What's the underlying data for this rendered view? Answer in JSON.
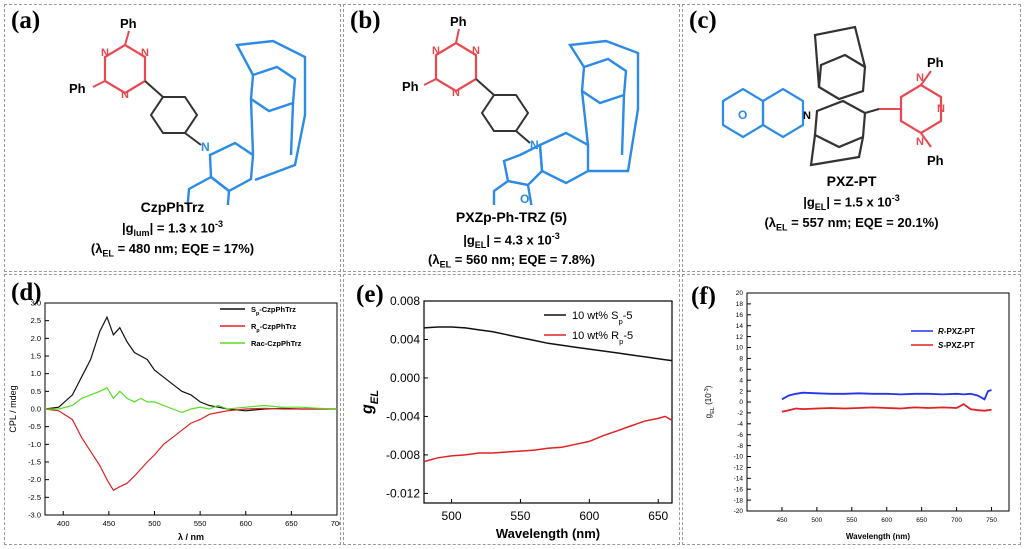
{
  "panels": {
    "a": {
      "label": "(a)",
      "name": "CzpPhTrz",
      "g_symbol": "g",
      "g_sub": "lum",
      "g_value": "= 1.3 x 10",
      "g_exp": "-3",
      "lambda_prefix": "(λ",
      "lambda_sub": "EL",
      "lambda_rest": "= 480 nm; EQE = 17%)"
    },
    "b": {
      "label": "(b)",
      "name": "PXZp-Ph-TRZ (5)",
      "g_symbol": "g",
      "g_sub": "EL",
      "g_value": "= 4.3 x 10",
      "g_exp": "-3",
      "lambda_prefix": "(λ",
      "lambda_sub": "EL",
      "lambda_rest": "= 560 nm; EQE = 7.8%)"
    },
    "c": {
      "label": "(c)",
      "name": "PXZ-PT",
      "g_symbol": "g",
      "g_sub": "EL",
      "g_value": "= 1.5 x 10",
      "g_exp": "-3",
      "lambda_prefix": "(λ",
      "lambda_sub": "EL",
      "lambda_rest": "= 557 nm; EQE = 20.1%)"
    },
    "d": {
      "label": "(d)"
    },
    "e": {
      "label": "(e)"
    },
    "f": {
      "label": "(f)"
    }
  },
  "molecule_labels": {
    "ph": "Ph",
    "n": "N",
    "o": "O"
  },
  "colors": {
    "triazine": "#e8484f",
    "paracyclophane": "#2b8be6",
    "black_series": "#111111",
    "red_series": "#e02222",
    "green_series": "#55dd22",
    "blue_series": "#2233ee"
  },
  "chart_data": [
    {
      "id": "d",
      "type": "line",
      "xlabel": "λ / nm",
      "ylabel": "CPL / mdeg",
      "xlim": [
        380,
        700
      ],
      "ylim": [
        -3.0,
        3.0
      ],
      "xticks": [
        400,
        450,
        500,
        550,
        600,
        650,
        700
      ],
      "yticks": [
        -3.0,
        -2.5,
        -2.0,
        -1.5,
        -1.0,
        -0.5,
        0.0,
        0.5,
        1.0,
        1.5,
        2.0,
        2.5,
        3.0
      ],
      "legend_position": "top-right",
      "x": [
        380,
        395,
        410,
        420,
        430,
        440,
        448,
        455,
        462,
        470,
        478,
        485,
        492,
        500,
        510,
        520,
        530,
        540,
        550,
        560,
        570,
        580,
        600,
        620,
        640,
        660,
        680,
        700
      ],
      "series": [
        {
          "name": "Sp-CzpPhTrz",
          "legend_main": "S",
          "legend_sub": "p",
          "legend_rest": "-CzpPhTrz",
          "color": "#111111",
          "values": [
            0.0,
            0.05,
            0.4,
            0.9,
            1.4,
            2.2,
            2.6,
            2.1,
            2.3,
            1.9,
            1.6,
            1.5,
            1.4,
            1.1,
            0.9,
            0.7,
            0.5,
            0.4,
            0.2,
            0.1,
            0.05,
            0.0,
            -0.05,
            0.0,
            0.02,
            0.0,
            0.0,
            0.0
          ]
        },
        {
          "name": "Rp-CzpPhTrz",
          "legend_main": "R",
          "legend_sub": "p",
          "legend_rest": "-CzpPhTrz",
          "color": "#e02222",
          "values": [
            0.0,
            -0.05,
            -0.3,
            -0.8,
            -1.2,
            -1.6,
            -2.0,
            -2.3,
            -2.2,
            -2.1,
            -1.9,
            -1.7,
            -1.5,
            -1.3,
            -1.0,
            -0.8,
            -0.6,
            -0.4,
            -0.3,
            -0.15,
            -0.1,
            -0.05,
            0.0,
            0.02,
            0.0,
            0.0,
            0.0,
            0.0
          ]
        },
        {
          "name": "Rac-CzpPhTrz",
          "legend_main": "Rac-CzpPhTrz",
          "legend_sub": "",
          "legend_rest": "",
          "color": "#55dd22",
          "values": [
            0.0,
            0.0,
            0.1,
            0.3,
            0.4,
            0.5,
            0.6,
            0.3,
            0.5,
            0.3,
            0.2,
            0.3,
            0.2,
            0.2,
            0.1,
            0.0,
            -0.1,
            0.0,
            0.05,
            0.0,
            0.1,
            0.0,
            0.05,
            0.1,
            0.05,
            0.05,
            0.02,
            0.0
          ]
        }
      ]
    },
    {
      "id": "e",
      "type": "line",
      "xlabel": "Wavelength (nm)",
      "ylabel_main": "g",
      "ylabel_sub": "EL",
      "xlim": [
        480,
        660
      ],
      "ylim": [
        -0.013,
        0.008
      ],
      "xticks": [
        500,
        550,
        600,
        650
      ],
      "yticks": [
        -0.012,
        -0.008,
        -0.004,
        0.0,
        0.004,
        0.008
      ],
      "ytick_labels": [
        "-0.012",
        "-0.008",
        "-0.004",
        "0.000",
        "0.004",
        "0.008"
      ],
      "legend_position": "top-right",
      "x": [
        480,
        490,
        500,
        510,
        520,
        530,
        540,
        550,
        560,
        570,
        580,
        590,
        600,
        610,
        620,
        630,
        640,
        650,
        655,
        660
      ],
      "series": [
        {
          "name": "10 wt% Sp-5",
          "legend_main": "10 wt% S",
          "legend_sub": "p",
          "legend_rest": "-5",
          "color": "#111111",
          "values": [
            0.0052,
            0.0053,
            0.0053,
            0.0052,
            0.005,
            0.0048,
            0.0045,
            0.0042,
            0.0039,
            0.0036,
            0.0034,
            0.0032,
            0.003,
            0.0028,
            0.0026,
            0.0024,
            0.0022,
            0.002,
            0.0019,
            0.0018
          ]
        },
        {
          "name": "10 wt% Rp-5",
          "legend_main": "10 wt% R",
          "legend_sub": "p",
          "legend_rest": "-5",
          "color": "#e02222",
          "values": [
            -0.0087,
            -0.0083,
            -0.0081,
            -0.008,
            -0.0078,
            -0.0078,
            -0.0077,
            -0.0076,
            -0.0075,
            -0.0073,
            -0.0072,
            -0.0069,
            -0.0066,
            -0.006,
            -0.0055,
            -0.005,
            -0.0045,
            -0.0042,
            -0.004,
            -0.0044
          ]
        }
      ]
    },
    {
      "id": "f",
      "type": "line",
      "xlabel": "Wavelength (nm)",
      "ylabel_main": "g",
      "ylabel_sub": "EL",
      "ylabel_rest": " (10",
      "ylabel_exp": "-3",
      "ylabel_close": ")",
      "xlim": [
        400,
        775
      ],
      "ylim": [
        -20,
        20
      ],
      "xticks": [
        450,
        500,
        550,
        600,
        650,
        700,
        750
      ],
      "yticks": [
        -20,
        -18,
        -16,
        -14,
        -12,
        -10,
        -8,
        -6,
        -4,
        -2,
        0,
        2,
        4,
        6,
        8,
        10,
        12,
        14,
        16,
        18,
        20
      ],
      "legend_position": "top-right",
      "x": [
        450,
        460,
        470,
        480,
        500,
        520,
        540,
        560,
        580,
        600,
        620,
        640,
        660,
        680,
        700,
        710,
        720,
        730,
        740,
        745,
        750
      ],
      "series": [
        {
          "name": "R-PXZ-PT",
          "legend_main": "R",
          "legend_rest": "-PXZ-PT",
          "color": "#2233ee",
          "values": [
            0.5,
            1.2,
            1.5,
            1.7,
            1.6,
            1.5,
            1.5,
            1.6,
            1.5,
            1.5,
            1.4,
            1.5,
            1.5,
            1.4,
            1.5,
            1.4,
            1.5,
            1.2,
            0.5,
            2.0,
            2.2
          ]
        },
        {
          "name": "S-PXZ-PT",
          "legend_main": "S",
          "legend_rest": "-PXZ-PT",
          "color": "#e02222",
          "values": [
            -1.8,
            -1.5,
            -1.2,
            -1.3,
            -1.2,
            -1.1,
            -1.2,
            -1.1,
            -1.0,
            -1.1,
            -1.2,
            -1.0,
            -1.1,
            -1.0,
            -1.1,
            -0.4,
            -1.3,
            -1.5,
            -1.6,
            -1.5,
            -1.4
          ]
        }
      ]
    }
  ]
}
